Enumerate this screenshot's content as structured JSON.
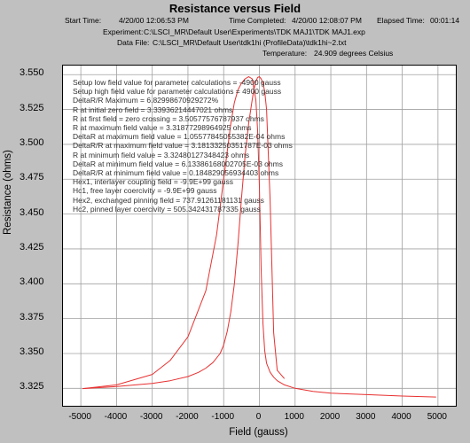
{
  "title": "Resistance versus Field",
  "header": {
    "start_label": "Start Time:",
    "start_value": "4/20/00 12:06:53 PM",
    "completed_label": "Time Completed:",
    "completed_value": "4/20/00 12:08:07 PM",
    "elapsed_label": "Elapsed Time:",
    "elapsed_value": "00:01:14",
    "experiment_label": "Experiment:",
    "experiment_value": "C:\\LSCI_MR\\Default User\\Experiments\\TDK MAJ1\\TDK MAJ1.exp",
    "datafile_label": "Data File:",
    "datafile_value": "C:\\LSCI_MR\\Default User\\tdk1hi (ProfileData)\\tdk1hi~2.txt",
    "temperature_label": "Temperature:",
    "temperature_value": "24.909 degrees Celsius"
  },
  "annotations": [
    "Setup low field value for parameter calculations =    -4900 gauss",
    "Setup high field value for parameter calculations =    4900 gauss",
    "DeltaR/R Maximum =     6.82998670929272%",
    "R at initial zero field =   3.33936214447021 ohms",
    "R at first field = zero crossing =    3.50577576787937 ohms",
    "R at maximum field value =    3.31877298964925 ohms",
    "DeltaR at maximum field value =    1.05577845055382E-04 ohms",
    "DeltaR/R at maximum field value =    3.18133250351787E-03 ohms",
    "R at minimum field value =    3.32480127348423 ohms",
    "DeltaR at minimum field value =    6.13386168002705E-03 ohms",
    "DeltaR/R at minimum field value =    0.184829056934403 ohms",
    "Hex1, interlayer coupling field =    -9.9E+99 gauss",
    "Hc1, free layer coercivity =    -9.9E+99 gauss",
    "Hex2, exchanged pinning field =    737.91261181131 gauss",
    "Hc2, pinned layer coercivity =    505.342431787335 gauss"
  ],
  "colors": {
    "curve": "#e83030",
    "grid": "#a0a0a0",
    "background": "#c0c0c0"
  },
  "chart_data": {
    "type": "line",
    "title": "Resistance versus Field",
    "xlabel": "Field (gauss)",
    "ylabel": "Resistance (ohms)",
    "xlim": [
      -5500,
      5500
    ],
    "ylim": [
      3.3125,
      3.5565
    ],
    "xticks": [
      -5000,
      -4000,
      -3000,
      -2000,
      -1000,
      0,
      1000,
      2000,
      3000,
      4000,
      5000
    ],
    "yticks": [
      3.325,
      3.35,
      3.375,
      3.4,
      3.425,
      3.45,
      3.475,
      3.5,
      3.525,
      3.55
    ],
    "ytick_labels": [
      "3.325",
      "3.350",
      "3.375",
      "3.400",
      "3.425",
      "3.450",
      "3.475",
      "3.500",
      "3.525",
      "3.550"
    ],
    "xtick_labels": [
      "-5000",
      "-4000",
      "-3000",
      "-2000",
      "-1000",
      "0",
      "1000",
      "2000",
      "3000",
      "4000",
      "5000"
    ],
    "grid": true,
    "series": [
      {
        "x": [
          -4950,
          -4000,
          -3000,
          -2500,
          -2000,
          -1700,
          -1500,
          -1300,
          -1100,
          -1000,
          -900,
          -800,
          -700,
          -600,
          -500,
          -400,
          -300,
          -200,
          -150,
          -100,
          -50,
          0,
          50,
          100,
          150,
          200,
          300,
          400,
          500,
          700
        ],
        "y": [
          3.3248,
          3.3263,
          3.3285,
          3.3305,
          3.3335,
          3.3365,
          3.3395,
          3.3435,
          3.35,
          3.356,
          3.366,
          3.38,
          3.4,
          3.428,
          3.462,
          3.492,
          3.515,
          3.532,
          3.54,
          3.545,
          3.548,
          3.5485,
          3.547,
          3.544,
          3.538,
          3.525,
          3.46,
          3.365,
          3.338,
          3.332
        ]
      },
      {
        "x": [
          4950,
          4000,
          3000,
          2000,
          1500,
          1000,
          700,
          500,
          400,
          300,
          200,
          150,
          100,
          50,
          0,
          -50,
          -100,
          -200,
          -300,
          -400,
          -500,
          -600,
          -700,
          -800,
          -1000,
          -1200,
          -1500,
          -2000,
          -2500,
          -3000,
          -4000,
          -4950
        ],
        "y": [
          3.3188,
          3.3195,
          3.3205,
          3.3215,
          3.3228,
          3.325,
          3.3275,
          3.3305,
          3.333,
          3.3365,
          3.343,
          3.352,
          3.372,
          3.41,
          3.47,
          3.51,
          3.532,
          3.547,
          3.5485,
          3.547,
          3.544,
          3.539,
          3.53,
          3.515,
          3.475,
          3.435,
          3.395,
          3.362,
          3.345,
          3.335,
          3.3275,
          3.3248
        ]
      }
    ]
  }
}
